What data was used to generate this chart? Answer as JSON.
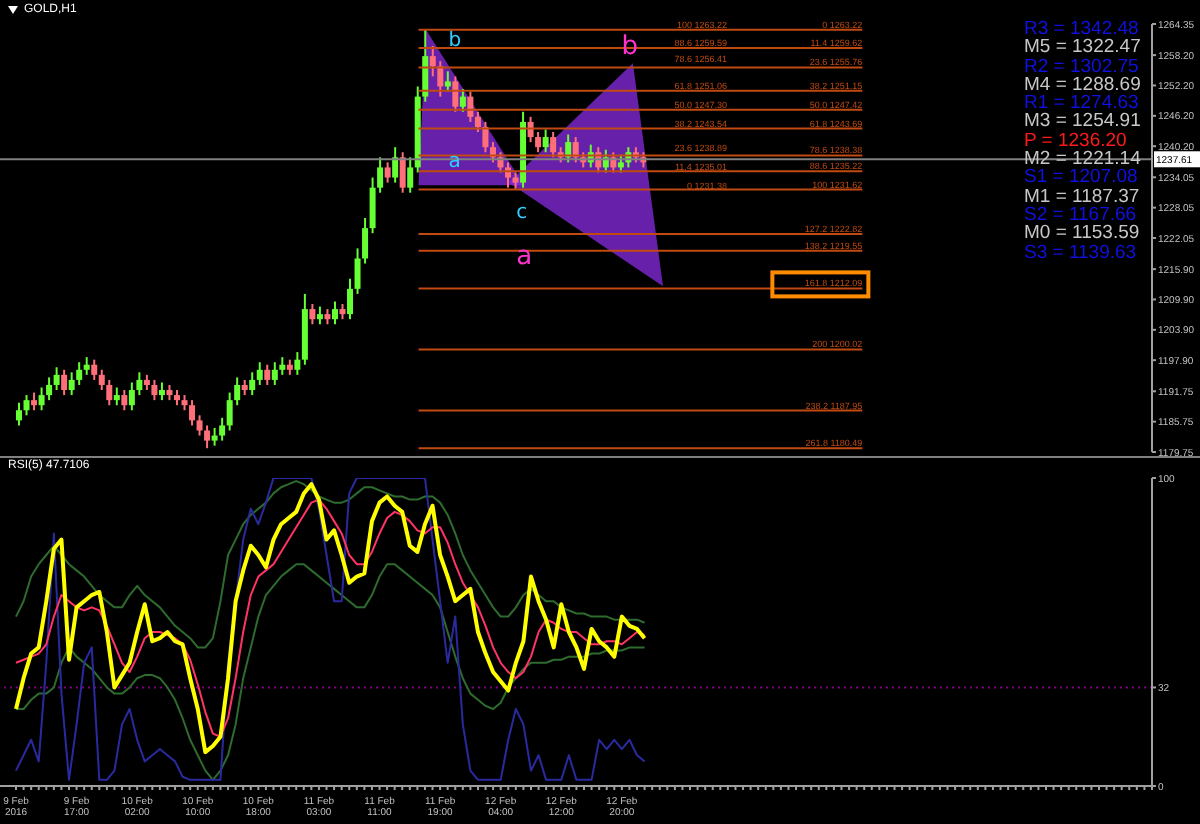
{
  "chart_data": [
    {
      "type": "candlestick",
      "title": "GOLD,H1",
      "categories": [
        null,
        null,
        null,
        null,
        null,
        null,
        null,
        null,
        null,
        null,
        null,
        null,
        null,
        null,
        null,
        null,
        null,
        null,
        null,
        null,
        null,
        null,
        null,
        null,
        null,
        null,
        null,
        null,
        null,
        null,
        null,
        null,
        null,
        null,
        null,
        null,
        null,
        null,
        null,
        null,
        null,
        null,
        null,
        null,
        null,
        null,
        null,
        null,
        null,
        null,
        null,
        null,
        null,
        null,
        null,
        null,
        null,
        null,
        null,
        null,
        null,
        null,
        null,
        null,
        null,
        null,
        null,
        null,
        null,
        null,
        null,
        null,
        null,
        null,
        null,
        null,
        null,
        null,
        null,
        null,
        null,
        null,
        null,
        null,
        null,
        null,
        null,
        null,
        null,
        null,
        null,
        null,
        null,
        null,
        null,
        null,
        null,
        null,
        null,
        null,
        null,
        null,
        null,
        null,
        null,
        null,
        null,
        null,
        null,
        null,
        null,
        null,
        null,
        null,
        null,
        null,
        null,
        null,
        null,
        null,
        null,
        null,
        null,
        null,
        null,
        null,
        null,
        null,
        null,
        null,
        null,
        null,
        null,
        null,
        null,
        null,
        null,
        null,
        null,
        null,
        null,
        null,
        null,
        null,
        null,
        null,
        null,
        null,
        null,
        null,
        null
      ],
      "ohlc": [
        [
          1186,
          1189.5,
          1185,
          1188
        ],
        [
          1188,
          1191,
          1187,
          1190
        ],
        [
          1190,
          1191.5,
          1188,
          1189
        ],
        [
          1189,
          1192.5,
          1188,
          1191
        ],
        [
          1191,
          1194.5,
          1190,
          1193
        ],
        [
          1193,
          1196.5,
          1192,
          1195
        ],
        [
          1195,
          1196,
          1191,
          1192
        ],
        [
          1192,
          1195.5,
          1191,
          1194
        ],
        [
          1194,
          1197.5,
          1193,
          1196
        ],
        [
          1196,
          1198.5,
          1195,
          1197
        ],
        [
          1197,
          1198,
          1194,
          1195
        ],
        [
          1195,
          1196,
          1192,
          1193
        ],
        [
          1193,
          1194,
          1189,
          1190
        ],
        [
          1190,
          1192.5,
          1189,
          1191
        ],
        [
          1191,
          1192,
          1188,
          1189
        ],
        [
          1189,
          1193.5,
          1188,
          1192
        ],
        [
          1192,
          1195.5,
          1191,
          1194
        ],
        [
          1194,
          1195,
          1192,
          1193
        ],
        [
          1193,
          1194,
          1190,
          1191
        ],
        [
          1191,
          1193.5,
          1190,
          1192
        ],
        [
          1192,
          1193,
          1190,
          1191
        ],
        [
          1191,
          1192,
          1189,
          1190
        ],
        [
          1190,
          1191,
          1188,
          1189
        ],
        [
          1189,
          1190,
          1185,
          1186
        ],
        [
          1186,
          1187,
          1183,
          1184
        ],
        [
          1184,
          1185,
          1180.5,
          1182
        ],
        [
          1182,
          1184.5,
          1181,
          1183
        ],
        [
          1183,
          1186.5,
          1182,
          1185
        ],
        [
          1185,
          1191.5,
          1184,
          1190
        ],
        [
          1190,
          1194.5,
          1189,
          1193
        ],
        [
          1193,
          1194,
          1191,
          1192
        ],
        [
          1192,
          1195.5,
          1191,
          1194
        ],
        [
          1194,
          1197.5,
          1193,
          1196
        ],
        [
          1196,
          1197,
          1193,
          1194
        ],
        [
          1194,
          1197.5,
          1193,
          1196
        ],
        [
          1196,
          1198.5,
          1195,
          1197
        ],
        [
          1197,
          1198,
          1195,
          1196
        ],
        [
          1196,
          1199.5,
          1195,
          1198
        ],
        [
          1198,
          1211,
          1197,
          1208
        ],
        [
          1208,
          1209,
          1205,
          1206
        ],
        [
          1206,
          1208.5,
          1205,
          1207
        ],
        [
          1207,
          1208,
          1205,
          1206
        ],
        [
          1206,
          1209.5,
          1205,
          1208
        ],
        [
          1208,
          1209,
          1206,
          1207
        ],
        [
          1207,
          1214,
          1206,
          1212
        ],
        [
          1212,
          1220,
          1211,
          1218
        ],
        [
          1218,
          1226,
          1217,
          1224
        ],
        [
          1224,
          1234,
          1223,
          1232
        ],
        [
          1232,
          1238,
          1231,
          1236
        ],
        [
          1236,
          1237,
          1233,
          1234
        ],
        [
          1234,
          1240,
          1233,
          1238
        ],
        [
          1238,
          1239,
          1231,
          1232
        ],
        [
          1232,
          1238,
          1231,
          1236
        ],
        [
          1236,
          1252,
          1235,
          1250
        ],
        [
          1250,
          1263.22,
          1249,
          1258
        ],
        [
          1258,
          1260,
          1254,
          1256
        ],
        [
          1256,
          1257,
          1250,
          1252
        ],
        [
          1252,
          1255,
          1251,
          1253
        ],
        [
          1253,
          1254,
          1247,
          1248
        ],
        [
          1248,
          1251.5,
          1247,
          1250
        ],
        [
          1250,
          1251,
          1245,
          1246
        ],
        [
          1246,
          1247,
          1243,
          1244
        ],
        [
          1244,
          1245,
          1239,
          1240
        ],
        [
          1240,
          1241,
          1237,
          1238
        ],
        [
          1238,
          1239,
          1235,
          1236
        ],
        [
          1236,
          1237,
          1232,
          1234
        ],
        [
          1234,
          1235,
          1231.62,
          1233
        ],
        [
          1233,
          1247,
          1232,
          1245
        ],
        [
          1245,
          1246,
          1241,
          1242
        ],
        [
          1242,
          1243,
          1239,
          1240
        ],
        [
          1240,
          1243.5,
          1239,
          1242
        ],
        [
          1242,
          1243,
          1238,
          1239
        ],
        [
          1239,
          1240,
          1237,
          1238
        ],
        [
          1238,
          1242.5,
          1237,
          1241
        ],
        [
          1241,
          1242,
          1237,
          1238
        ],
        [
          1238,
          1239,
          1236,
          1237
        ],
        [
          1237,
          1240.5,
          1236,
          1239
        ],
        [
          1239,
          1240,
          1235,
          1236
        ],
        [
          1236,
          1239.5,
          1235,
          1238
        ],
        [
          1238,
          1239,
          1235,
          1236
        ],
        [
          1236,
          1238.5,
          1235,
          1237
        ],
        [
          1237,
          1240,
          1236,
          1239
        ],
        [
          1239,
          1240,
          1237,
          1238
        ],
        [
          1238,
          1239,
          1236,
          1237
        ],
        null,
        null,
        null,
        null,
        null,
        null,
        null,
        null,
        null,
        null,
        null,
        null,
        null,
        null,
        null,
        null,
        null,
        null,
        null,
        null,
        null,
        null,
        null,
        null,
        null,
        null,
        null,
        null,
        null,
        null,
        null,
        null,
        null,
        null,
        null,
        null,
        null,
        null,
        null,
        null,
        null,
        null,
        null,
        null,
        null,
        null,
        null,
        null,
        null,
        null,
        null,
        null,
        null,
        null,
        null,
        null,
        null,
        null,
        null,
        null,
        null,
        null,
        null,
        null,
        null,
        null,
        null
      ],
      "ylim": [
        1179.75,
        1264.35
      ],
      "yticks": [
        1264.35,
        {
          "value": 1258.2,
          "label": "1258.20"
        },
        {
          "value": 1252.2,
          "label": "1252.20"
        },
        {
          "value": 1246.2,
          "label": "1246.20"
        },
        {
          "value": 1240.2,
          "label": "1240.20"
        },
        1234.05,
        1228.05,
        1222.05,
        {
          "value": 1215.9,
          "label": "1215.90"
        },
        {
          "value": 1209.9,
          "label": "1209.90"
        },
        {
          "value": 1203.9,
          "label": "1203.90"
        },
        {
          "value": 1197.9,
          "label": "1197.90"
        },
        1191.75,
        1185.75,
        1179.75
      ],
      "tick_labels": "y",
      "ref_lines": [
        {
          "axis": "y",
          "value": 1237.61,
          "label": "1237.61",
          "color": "#808080"
        },
        {
          "axis": "y",
          "value": 1263.22,
          "label": "0 1263.22",
          "color": "#c04a10"
        },
        {
          "axis": "y",
          "value": 1259.62,
          "label": "11.4 1259.62",
          "color": "#c04a10"
        },
        {
          "axis": "y",
          "value": 1255.76,
          "label": "23.6 1255.76",
          "color": "#c04a10"
        },
        {
          "axis": "y",
          "value": 1251.15,
          "label": "38.2 1251.15",
          "color": "#c04a10"
        },
        {
          "axis": "y",
          "value": 1247.42,
          "label": "50.0 1247.42",
          "color": "#c04a10"
        },
        {
          "axis": "y",
          "value": 1243.69,
          "label": "61.8 1243.69",
          "color": "#c04a10"
        },
        {
          "axis": "y",
          "value": 1238.38,
          "label": "78.6 1238.38",
          "color": "#c04a10"
        },
        {
          "axis": "y",
          "value": 1235.22,
          "label": "88.6 1235.22",
          "color": "#c04a10"
        },
        {
          "axis": "y",
          "value": 1231.62,
          "label": "100 1231.62",
          "color": "#c04a10"
        },
        {
          "axis": "y",
          "value": 1222.82,
          "label": "127.2 1222.82",
          "color": "#c04a10"
        },
        {
          "axis": "y",
          "value": 1219.55,
          "label": "138.2 1219.55",
          "color": "#c04a10"
        },
        {
          "axis": "y",
          "value": 1212.09,
          "label": "161.8 1212.09",
          "color": "#c04a10"
        },
        {
          "axis": "y",
          "value": 1200.02,
          "label": "200 1200.02",
          "color": "#c04a10"
        },
        {
          "axis": "y",
          "value": 1187.95,
          "label": "238.2 1187.95",
          "color": "#c04a10"
        },
        {
          "axis": "y",
          "value": 1180.49,
          "label": "261.8 1180.49",
          "color": "#c04a10"
        }
      ],
      "annotations": [
        "R3 = 1342.48",
        "M5 = 1322.47",
        "R2 = 1302.75",
        "M4 = 1288.69",
        "R1 = 1274.63",
        "M3 = 1254.91",
        "P = 1236.20",
        "M2 = 1221.14",
        "S1 = 1207.08",
        "M1 = 1187.37",
        "S2 = 1167.66",
        "M0 = 1153.59",
        "S3 = 1139.63",
        {
          "text": "100 1263.22",
          "y": 1263.22
        },
        {
          "text": "88.6 1259.59",
          "y": 1259.59
        },
        {
          "text": "78.6 1256.41",
          "y": 1256.41
        },
        {
          "text": "61.8 1251.06",
          "y": 1251.06
        },
        {
          "text": "50.0 1247.30",
          "y": 1247.3
        },
        {
          "text": "38.2 1243.54",
          "y": 1243.54
        },
        {
          "text": "23.6 1238.89",
          "y": 1238.89
        },
        {
          "text": "11.4 1235.01",
          "y": 1235.01
        },
        {
          "text": "0 1231.38",
          "y": 1231.38
        },
        "b",
        "b",
        "a",
        "c",
        "a"
      ]
    },
    {
      "type": "line",
      "title": "RSI(5) 47.7106",
      "categories": [
        "9 Feb 2016",
        null,
        null,
        null,
        null,
        null,
        null,
        null,
        "9 Feb 17:00",
        null,
        null,
        null,
        null,
        null,
        null,
        null,
        "10 Feb 02:00",
        null,
        null,
        null,
        null,
        null,
        null,
        null,
        "10 Feb 10:00",
        null,
        null,
        null,
        null,
        null,
        null,
        null,
        "10 Feb 18:00",
        null,
        null,
        null,
        null,
        null,
        null,
        null,
        "11 Feb 03:00",
        null,
        null,
        null,
        null,
        null,
        null,
        null,
        "11 Feb 11:00",
        null,
        null,
        null,
        null,
        null,
        null,
        null,
        "11 Feb 19:00",
        null,
        null,
        null,
        null,
        null,
        null,
        null,
        "12 Feb 04:00",
        null,
        null,
        null,
        null,
        null,
        null,
        null,
        "12 Feb 12:00",
        null,
        null,
        null,
        null,
        null,
        null,
        null,
        "12 Feb 20:00",
        null,
        null,
        null,
        null,
        null,
        null,
        null,
        null,
        null,
        null,
        null,
        null,
        null,
        null,
        null,
        null,
        null,
        null,
        null,
        null,
        null,
        null,
        null,
        null,
        null,
        null,
        null,
        null,
        null,
        null,
        null,
        null,
        null,
        null,
        null,
        null,
        null,
        null,
        null,
        null,
        null,
        null,
        null,
        null,
        null,
        null,
        null,
        null,
        null,
        null,
        null,
        null,
        null,
        null,
        null,
        null,
        null,
        null,
        null,
        null,
        null,
        null,
        null,
        null,
        null,
        null,
        null,
        null,
        null,
        null
      ],
      "series": [
        {
          "color": "#2e6b2e",
          "values": [
            55,
            60,
            68,
            72,
            75,
            78,
            75,
            72,
            70,
            68,
            65,
            62,
            60,
            58,
            58,
            62,
            65,
            62,
            60,
            58,
            55,
            52,
            50,
            48,
            45,
            45,
            48,
            60,
            75,
            80,
            85,
            88,
            90,
            92,
            95,
            97,
            98,
            99,
            98,
            96,
            94,
            93,
            92,
            92,
            93,
            95,
            97,
            97,
            96,
            95,
            94,
            94,
            93,
            93,
            94,
            94,
            92,
            88,
            82,
            75,
            70,
            66,
            62,
            58,
            55,
            55,
            58,
            62,
            64,
            62,
            60,
            60,
            58,
            57,
            56,
            56,
            55,
            55,
            55,
            54,
            54,
            54,
            54,
            53,
            null,
            null,
            null,
            null,
            null,
            null,
            null,
            null,
            null,
            null,
            null,
            null,
            null,
            null,
            null,
            null,
            null,
            null,
            null,
            null,
            null,
            null,
            null,
            null,
            null,
            null,
            null,
            null,
            null,
            null,
            null,
            null,
            null,
            null,
            null,
            null,
            null,
            null,
            null,
            null,
            null,
            null,
            null,
            null,
            null,
            null,
            null,
            null,
            null,
            null,
            null,
            null,
            null,
            null,
            null,
            null,
            null,
            null,
            null,
            null,
            null,
            null,
            null,
            null,
            null,
            null,
            null
          ]
        },
        {
          "color": "#2e6b2e",
          "values": [
            25,
            25,
            28,
            30,
            30,
            32,
            40,
            45,
            42,
            40,
            38,
            35,
            32,
            30,
            30,
            32,
            35,
            36,
            36,
            35,
            32,
            28,
            22,
            15,
            10,
            5,
            2,
            5,
            10,
            20,
            35,
            45,
            55,
            62,
            65,
            68,
            70,
            72,
            72,
            70,
            68,
            66,
            64,
            62,
            60,
            58,
            58,
            62,
            68,
            72,
            72,
            70,
            68,
            66,
            64,
            62,
            58,
            50,
            42,
            35,
            30,
            28,
            26,
            25,
            27,
            32,
            35,
            38,
            40,
            40,
            40,
            41,
            41,
            42,
            42,
            42,
            43,
            43,
            44,
            44,
            44,
            45,
            45,
            45,
            null,
            null,
            null,
            null,
            null,
            null,
            null,
            null,
            null,
            null,
            null,
            null,
            null,
            null,
            null,
            null,
            null,
            null,
            null,
            null,
            null,
            null,
            null,
            null,
            null,
            null,
            null,
            null,
            null,
            null,
            null,
            null,
            null,
            null,
            null,
            null,
            null,
            null,
            null,
            null,
            null,
            null,
            null,
            null,
            null,
            null,
            null,
            null,
            null,
            null,
            null,
            null,
            null,
            null,
            null,
            null,
            null,
            null,
            null,
            null,
            null,
            null,
            null,
            null,
            null,
            null,
            null
          ]
        },
        {
          "color": "#2a2aa0",
          "values": [
            5,
            10,
            15,
            8,
            40,
            82,
            30,
            2,
            20,
            40,
            45,
            2,
            2,
            5,
            20,
            25,
            15,
            8,
            10,
            12,
            10,
            8,
            3,
            2,
            2,
            2,
            2,
            2,
            40,
            60,
            80,
            90,
            85,
            92,
            100,
            100,
            100,
            100,
            100,
            100,
            90,
            75,
            60,
            60,
            95,
            100,
            100,
            100,
            100,
            100,
            100,
            100,
            100,
            100,
            100,
            80,
            60,
            40,
            55,
            20,
            5,
            2,
            2,
            2,
            2,
            15,
            25,
            20,
            5,
            10,
            2,
            2,
            2,
            10,
            2,
            2,
            2,
            15,
            12,
            15,
            12,
            15,
            10,
            8,
            null,
            null,
            null,
            null,
            null,
            null,
            null,
            null,
            null,
            null,
            null,
            null,
            null,
            null,
            null,
            null,
            null,
            null,
            null,
            null,
            null,
            null,
            null,
            null,
            null,
            null,
            null,
            null,
            null,
            null,
            null,
            null,
            null,
            null,
            null,
            null,
            null,
            null,
            null,
            null,
            null,
            null,
            null,
            null,
            null,
            null,
            null,
            null,
            null,
            null,
            null,
            null,
            null,
            null,
            null,
            null,
            null,
            null,
            null,
            null,
            null,
            null,
            null,
            null,
            null,
            null,
            null
          ]
        },
        {
          "color": "#ff3366",
          "values": [
            40,
            41,
            42,
            43,
            46,
            55,
            62,
            60,
            58,
            57,
            58,
            57,
            52,
            46,
            40,
            37,
            42,
            48,
            50,
            50,
            49,
            48,
            46,
            41,
            33,
            24,
            17,
            16,
            22,
            35,
            50,
            62,
            68,
            70,
            72,
            76,
            80,
            84,
            88,
            92,
            93,
            90,
            86,
            82,
            75,
            72,
            72,
            76,
            82,
            87,
            89,
            88,
            86,
            83,
            82,
            84,
            84,
            79,
            72,
            66,
            62,
            58,
            52,
            45,
            40,
            37,
            35,
            37,
            42,
            50,
            54,
            53,
            51,
            50,
            50,
            48,
            46,
            46,
            47,
            47,
            46,
            48,
            50,
            49,
            null,
            null,
            null,
            null,
            null,
            null,
            null,
            null,
            null,
            null,
            null,
            null,
            null,
            null,
            null,
            null,
            null,
            null,
            null,
            null,
            null,
            null,
            null,
            null,
            null,
            null,
            null,
            null,
            null,
            null,
            null,
            null,
            null,
            null,
            null,
            null,
            null,
            null,
            null,
            null,
            null,
            null,
            null,
            null,
            null,
            null,
            null,
            null,
            null,
            null,
            null,
            null,
            null,
            null,
            null,
            null,
            null,
            null,
            null,
            null,
            null,
            null,
            null,
            null,
            null,
            null,
            null
          ]
        },
        {
          "color": "#ffff00",
          "values": [
            25,
            35,
            43,
            45,
            60,
            77,
            80,
            41,
            58,
            60,
            62,
            63,
            50,
            32,
            36,
            40,
            50,
            59,
            47,
            48,
            50,
            47,
            46,
            35,
            25,
            11,
            13,
            16,
            35,
            60,
            70,
            78,
            75,
            71,
            80,
            85,
            87,
            89,
            95,
            98,
            93,
            80,
            83,
            75,
            66,
            68,
            69,
            86,
            92,
            94,
            91,
            89,
            78,
            76,
            85,
            91,
            75,
            68,
            60,
            62,
            64,
            50,
            43,
            37,
            34,
            31,
            40,
            47,
            68,
            60,
            54,
            45,
            59,
            50,
            45,
            38,
            51,
            47,
            45,
            42,
            55,
            52,
            51,
            48,
            null,
            null,
            null,
            null,
            null,
            null,
            null,
            null,
            null,
            null,
            null,
            null,
            null,
            null,
            null,
            null,
            null,
            null,
            null,
            null,
            null,
            null,
            null,
            null,
            null,
            null,
            null,
            null,
            null,
            null,
            null,
            null,
            null,
            null,
            null,
            null,
            null,
            null,
            null,
            null,
            null,
            null,
            null,
            null,
            null,
            null,
            null,
            null,
            null,
            null,
            null,
            null,
            null,
            null,
            null,
            null,
            null,
            null,
            null,
            null,
            null,
            null,
            null,
            null,
            null,
            null,
            null
          ]
        }
      ],
      "ylim": [
        0,
        100
      ],
      "yticks": [
        0,
        32,
        100
      ],
      "ref_lines": [
        {
          "axis": "y",
          "value": 32,
          "color": "#800080",
          "line_style": "dotted"
        }
      ]
    }
  ]
}
